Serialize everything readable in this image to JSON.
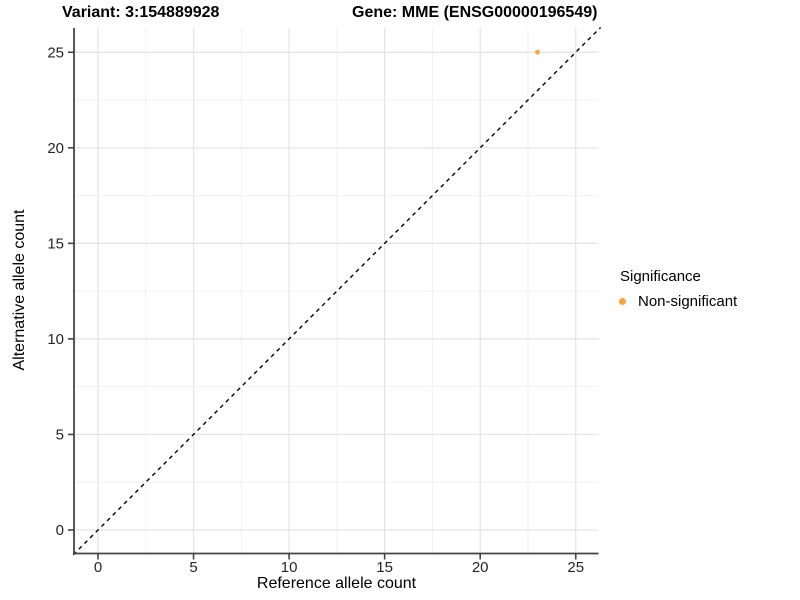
{
  "header": {
    "variant_title": "Variant: 3:154889928",
    "gene_title": "Gene: MME (ENSG00000196549)"
  },
  "chart_data": {
    "type": "scatter",
    "title": "Variant: 3:154889928   Gene: MME (ENSG00000196549)",
    "xlabel": "Reference allele count",
    "ylabel": "Alternative allele count",
    "xlim": [
      -1.3,
      26.3
    ],
    "ylim": [
      -1.3,
      26.3
    ],
    "x_ticks": [
      0,
      5,
      10,
      15,
      20,
      25
    ],
    "y_ticks": [
      0,
      5,
      10,
      15,
      20,
      25
    ],
    "grid": "major and minor gridlines on, white background",
    "reference_line": {
      "type": "identity y=x",
      "style": "dashed",
      "color": "#000000"
    },
    "series": [
      {
        "name": "Non-significant",
        "color": "#FAA43C",
        "points": [
          {
            "x": 23,
            "y": 25
          }
        ]
      }
    ],
    "legend": {
      "title": "Significance",
      "position": "right",
      "items": [
        {
          "label": "Non-significant",
          "color": "#FAA43C"
        }
      ]
    },
    "style": {
      "grid_major_color": "#E3E3E3",
      "grid_minor_color": "#F1F1F1",
      "axis_line_color": "#454545",
      "tick_label_color": "#262626",
      "point_radius": 2.4,
      "legend_key_radius": 3.5
    }
  }
}
